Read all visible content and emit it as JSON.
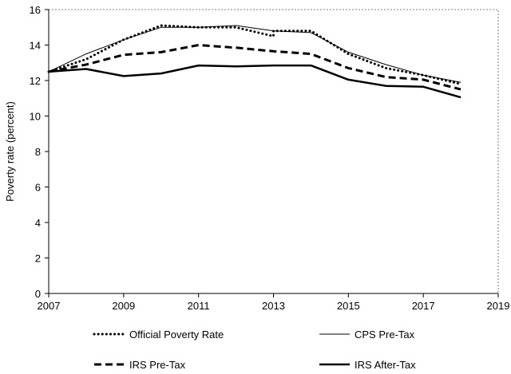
{
  "chart_data": {
    "type": "line",
    "title": "",
    "xlabel": "",
    "ylabel": "Poverty rate (percent)",
    "xlim": [
      2007,
      2019
    ],
    "ylim": [
      0,
      16
    ],
    "x_ticks": [
      2007,
      2009,
      2011,
      2013,
      2015,
      2017,
      2019
    ],
    "y_ticks": [
      0,
      2,
      4,
      6,
      8,
      10,
      12,
      14,
      16
    ],
    "grid": false,
    "legend_position": "bottom",
    "series": [
      {
        "name": "Official Poverty Rate",
        "style": "dotted",
        "color": "#000000",
        "x": [
          2007,
          2008,
          2009,
          2010,
          2011,
          2012,
          2013,
          2013,
          2014,
          2015,
          2016,
          2017,
          2018
        ],
        "y": [
          12.5,
          13.2,
          14.3,
          15.1,
          15.0,
          15.0,
          14.5,
          14.8,
          14.8,
          13.5,
          12.7,
          12.3,
          11.8
        ]
      },
      {
        "name": "CPS Pre-Tax",
        "style": "thin",
        "color": "#000000",
        "x": [
          2007,
          2008,
          2009,
          2010,
          2011,
          2012,
          2013,
          2014,
          2015,
          2016,
          2017,
          2018
        ],
        "y": [
          12.5,
          13.5,
          14.3,
          15.0,
          15.0,
          15.1,
          14.8,
          14.7,
          13.6,
          12.9,
          12.3,
          11.9
        ]
      },
      {
        "name": "IRS Pre-Tax",
        "style": "dashed",
        "color": "#000000",
        "x": [
          2007,
          2008,
          2009,
          2010,
          2011,
          2012,
          2013,
          2014,
          2015,
          2016,
          2017,
          2018
        ],
        "y": [
          12.5,
          12.9,
          13.45,
          13.6,
          14.0,
          13.85,
          13.65,
          13.5,
          12.7,
          12.2,
          12.05,
          11.5
        ]
      },
      {
        "name": "IRS After-Tax",
        "style": "thick",
        "color": "#000000",
        "x": [
          2007,
          2008,
          2009,
          2010,
          2011,
          2012,
          2013,
          2014,
          2015,
          2016,
          2017,
          2018
        ],
        "y": [
          12.5,
          12.65,
          12.25,
          12.4,
          12.85,
          12.8,
          12.85,
          12.85,
          12.05,
          11.7,
          11.65,
          11.05
        ]
      }
    ]
  }
}
